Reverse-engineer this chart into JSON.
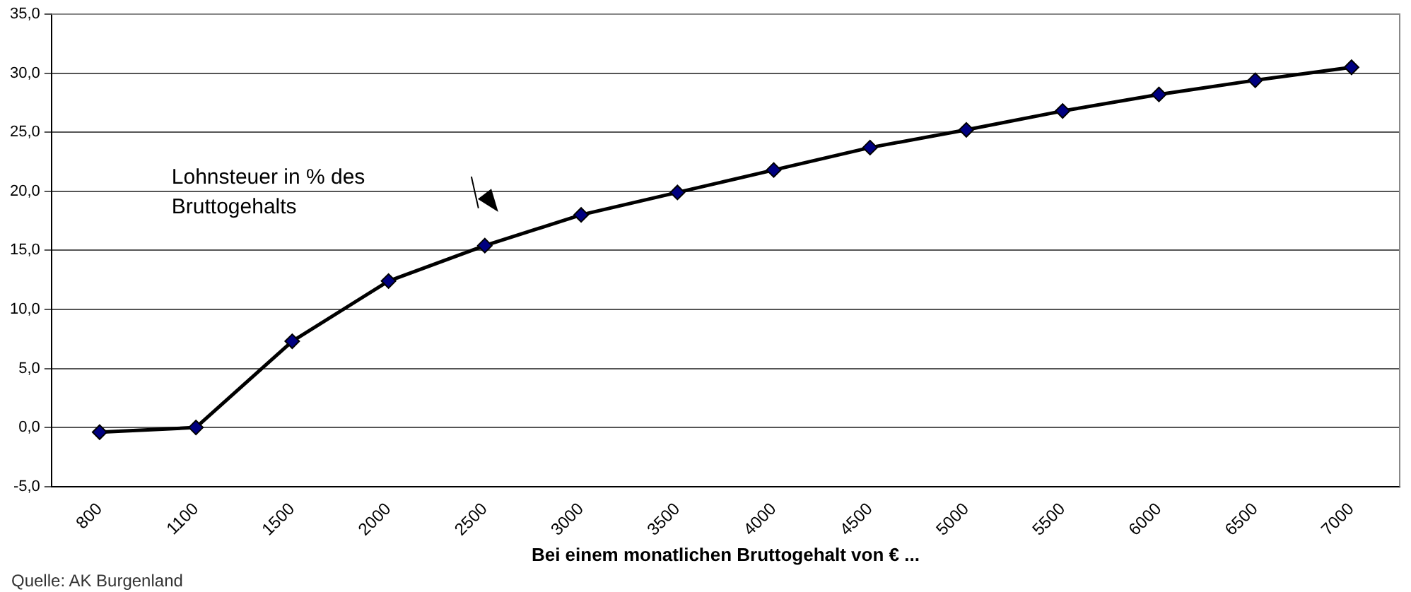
{
  "chart_data": {
    "type": "line",
    "xlabel": "Bei einem monatlichen Bruttogehalt von € ...",
    "categories": [
      "800",
      "1100",
      "1500",
      "2000",
      "2500",
      "3000",
      "3500",
      "4000",
      "4500",
      "5000",
      "5500",
      "6000",
      "6500",
      "7000"
    ],
    "series": [
      {
        "color": "#000080",
        "values": [
          -0.4,
          0.0,
          7.3,
          12.4,
          15.4,
          18.0,
          19.9,
          21.8,
          23.7,
          25.2,
          26.8,
          28.2,
          29.4,
          30.5
        ]
      }
    ],
    "ylim": [
      -5,
      35
    ],
    "yticks": [
      {
        "value": -5,
        "label": "-5,0"
      },
      {
        "value": 0,
        "label": "0,0"
      },
      {
        "value": 5,
        "label": "5,0"
      },
      {
        "value": 10,
        "label": "10,0"
      },
      {
        "value": 15,
        "label": "15,0"
      },
      {
        "value": 20,
        "label": "20,0"
      },
      {
        "value": 25,
        "label": "25,0"
      },
      {
        "value": 30,
        "label": "30,0"
      },
      {
        "value": 35,
        "label": "35,0"
      }
    ],
    "grid": "y",
    "legend": false,
    "marker": "diamond",
    "line_style": "solid",
    "annotations": [
      "Lohnsteuer in % des\nBruttogehalts",
      "Quelle: AK Burgenland"
    ]
  }
}
